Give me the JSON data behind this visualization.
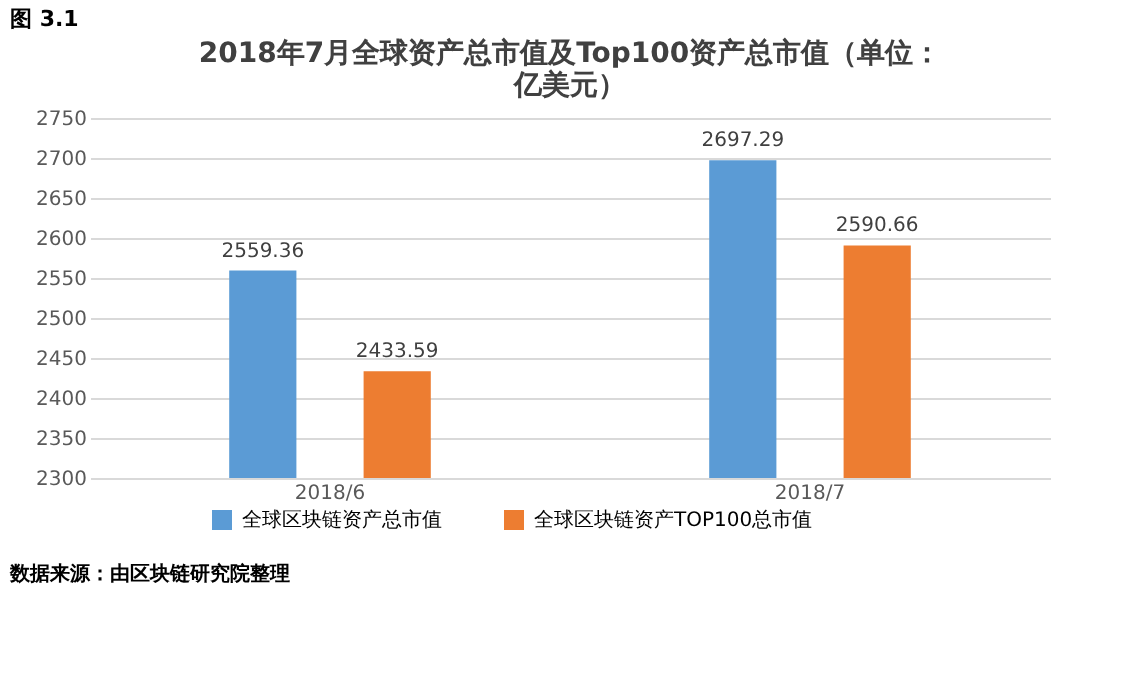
{
  "chart_data": {
    "type": "bar",
    "title": "2018年7月全球资产总市值及Top100资产总市值（单位：亿美元）",
    "categories": [
      "2018/6",
      "2018/7"
    ],
    "series": [
      {
        "name": "全球区块链资产总市值",
        "color": "#5b9bd5",
        "values": [
          2559.36,
          2697.29
        ]
      },
      {
        "name": "全球区块链资产TOP100总市值",
        "color": "#ed7d31",
        "values": [
          2433.59,
          2590.66
        ]
      }
    ],
    "ylim": [
      2300,
      2750
    ],
    "yticks": [
      2300,
      2350,
      2400,
      2450,
      2500,
      2550,
      2600,
      2650,
      2700,
      2750
    ],
    "grid": "y",
    "legend": "bottom",
    "data_labels": true,
    "annotations": [
      "图 3.1",
      "数据来源：由区块链研究院整理"
    ]
  }
}
